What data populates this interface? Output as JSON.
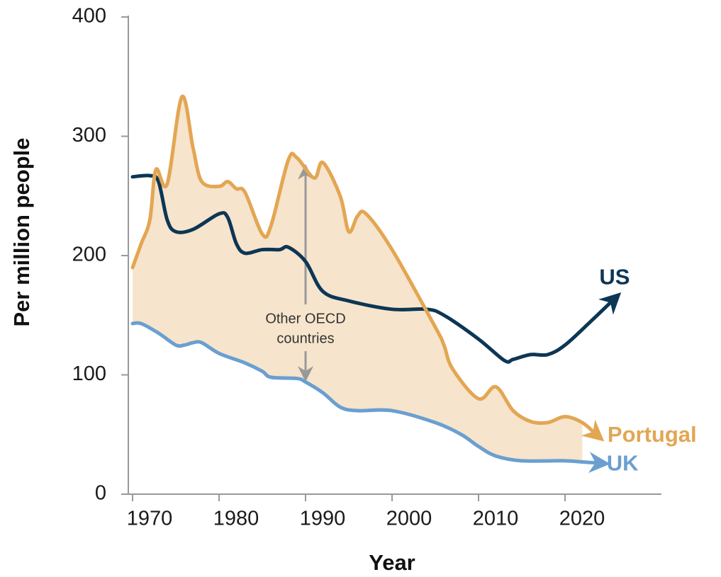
{
  "chart_data": {
    "type": "line",
    "x_label": "Year",
    "y_label": "Per million people",
    "annotation": [
      "Other OECD",
      "countries"
    ],
    "annotation_range": [
      96,
      275
    ],
    "annotation_x": 1990,
    "xlim": [
      1969.5,
      2031
    ],
    "ylim": [
      0,
      400
    ],
    "xticks": [
      1970,
      1980,
      1990,
      2000,
      2010,
      2020
    ],
    "yticks": [
      0,
      100,
      200,
      300,
      400
    ],
    "fill_between": [
      "Portugal",
      "UK"
    ],
    "fill_color": "#f6e4cc",
    "series": [
      {
        "name": "US",
        "color": "#0d3655",
        "x": [
          1970,
          1972,
          1973,
          1974,
          1975,
          1977,
          1980,
          1981,
          1982,
          1983,
          1985,
          1987,
          1988,
          1990,
          1992,
          1995,
          2000,
          2004,
          2006,
          2010,
          2013,
          2014,
          2016,
          2018,
          2020,
          2023,
          2025.6
        ],
        "values": [
          266,
          267,
          262,
          230,
          220,
          222,
          235,
          232,
          210,
          202,
          205,
          205,
          207,
          195,
          170,
          162,
          155,
          155,
          150,
          130,
          112,
          113,
          117,
          117,
          125,
          145,
          163
        ]
      },
      {
        "name": "Portugal",
        "color": "#e3a653",
        "x": [
          1970,
          1971,
          1972,
          1972.7,
          1974,
          1975.7,
          1977,
          1978,
          1980,
          1981,
          1982,
          1983,
          1985,
          1986,
          1988,
          1989,
          1991,
          1992,
          1994,
          1995,
          1996,
          1997,
          2000,
          2005,
          2006,
          2007,
          2010,
          2012,
          2014,
          2016,
          2018,
          2020,
          2022,
          2023.6
        ],
        "values": [
          190,
          210,
          230,
          272,
          260,
          333,
          290,
          262,
          258,
          262,
          256,
          253,
          218,
          225,
          280,
          282,
          265,
          278,
          250,
          220,
          233,
          235,
          205,
          140,
          125,
          105,
          80,
          90,
          70,
          61,
          60,
          65,
          60,
          50
        ]
      },
      {
        "name": "UK",
        "color": "#6a9fd0",
        "x": [
          1970,
          1971,
          1973,
          1975,
          1976,
          1977,
          1978,
          1980,
          1983,
          1985,
          1986,
          1989,
          1990,
          1992,
          1994,
          1996,
          2000,
          2005,
          2008,
          2010,
          2012,
          2015,
          2020,
          2022,
          2024
        ],
        "values": [
          143,
          143,
          135,
          125,
          125,
          127,
          127,
          118,
          110,
          103,
          98,
          97,
          94,
          85,
          73,
          70,
          70,
          60,
          50,
          40,
          32,
          28,
          28,
          27,
          26
        ]
      }
    ]
  }
}
